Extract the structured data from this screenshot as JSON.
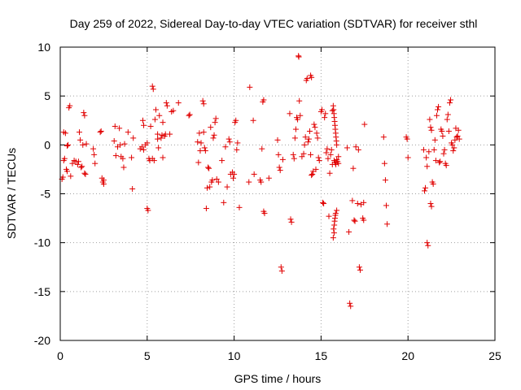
{
  "chart_data": {
    "type": "scatter",
    "title": "Day 259 of 2022, Sidereal Day-to-day VTEC variation (SDTVAR) for receiver sthl",
    "xlabel": "GPS time / hours",
    "ylabel": "SDTVAR / TECUs",
    "xlim": [
      0,
      25
    ],
    "ylim": [
      -20,
      10
    ],
    "xticks": [
      "0",
      "5",
      "10",
      "15",
      "20",
      "25"
    ],
    "yticks": [
      "10",
      "5",
      "0",
      "-5",
      "-10",
      "-15",
      "-20"
    ],
    "grid": true,
    "marker": "plus",
    "color": "#e00000",
    "series": [
      {
        "name": "SDTVAR",
        "points": [
          [
            0.1,
            -3.5
          ],
          [
            0.15,
            -3.3
          ],
          [
            0.2,
            -1.6
          ],
          [
            0.25,
            -1.4
          ],
          [
            0.2,
            1.3
          ],
          [
            0.3,
            1.2
          ],
          [
            0.35,
            -2.5
          ],
          [
            0.4,
            -2.7
          ],
          [
            0.4,
            -0.1
          ],
          [
            0.45,
            0.0
          ],
          [
            0.5,
            3.8
          ],
          [
            0.55,
            4.0
          ],
          [
            0.6,
            -3.2
          ],
          [
            0.7,
            -1.9
          ],
          [
            0.8,
            -1.6
          ],
          [
            0.9,
            -1.7
          ],
          [
            1.0,
            -2.0
          ],
          [
            1.05,
            -1.7
          ],
          [
            1.1,
            1.3
          ],
          [
            1.15,
            0.5
          ],
          [
            1.2,
            -2.3
          ],
          [
            1.25,
            -2.2
          ],
          [
            1.3,
            0.0
          ],
          [
            1.35,
            3.3
          ],
          [
            1.4,
            3.0
          ],
          [
            1.4,
            -2.9
          ],
          [
            1.45,
            -3.0
          ],
          [
            1.5,
            0.1
          ],
          [
            1.9,
            -0.4
          ],
          [
            1.95,
            -1.0
          ],
          [
            2.0,
            -1.9
          ],
          [
            2.3,
            1.3
          ],
          [
            2.35,
            1.4
          ],
          [
            2.4,
            -3.4
          ],
          [
            2.45,
            -3.8
          ],
          [
            2.5,
            -4.0
          ],
          [
            2.5,
            -3.6
          ],
          [
            3.1,
            0.4
          ],
          [
            3.15,
            1.9
          ],
          [
            3.2,
            -1.1
          ],
          [
            3.3,
            -0.2
          ],
          [
            3.4,
            1.7
          ],
          [
            3.45,
            0.0
          ],
          [
            3.5,
            -1.2
          ],
          [
            3.6,
            -1.4
          ],
          [
            3.65,
            -2.3
          ],
          [
            3.7,
            0.1
          ],
          [
            3.9,
            1.3
          ],
          [
            4.1,
            -1.3
          ],
          [
            4.15,
            -4.5
          ],
          [
            4.2,
            0.7
          ],
          [
            4.6,
            -0.4
          ],
          [
            4.7,
            -0.2
          ],
          [
            4.75,
            2.5
          ],
          [
            4.8,
            2.0
          ],
          [
            4.8,
            -0.5
          ],
          [
            4.9,
            0.0
          ],
          [
            5.0,
            0.2
          ],
          [
            5.0,
            -6.5
          ],
          [
            5.05,
            -6.7
          ],
          [
            5.1,
            -1.4
          ],
          [
            5.15,
            -1.6
          ],
          [
            5.2,
            1.9
          ],
          [
            5.3,
            -1.4
          ],
          [
            5.3,
            6.0
          ],
          [
            5.35,
            5.7
          ],
          [
            5.4,
            -1.6
          ],
          [
            5.45,
            2.6
          ],
          [
            5.5,
            3.6
          ],
          [
            5.6,
            0.6
          ],
          [
            5.6,
            1.1
          ],
          [
            5.65,
            -0.3
          ],
          [
            5.7,
            3.0
          ],
          [
            5.8,
            0.7
          ],
          [
            5.85,
            1.0
          ],
          [
            5.9,
            -1.3
          ],
          [
            5.9,
            2.3
          ],
          [
            6.0,
            0.9
          ],
          [
            6.05,
            1.1
          ],
          [
            6.1,
            4.3
          ],
          [
            6.15,
            4.0
          ],
          [
            6.3,
            1.1
          ],
          [
            6.4,
            3.4
          ],
          [
            6.5,
            3.5
          ],
          [
            6.8,
            4.3
          ],
          [
            7.4,
            3.0
          ],
          [
            7.45,
            3.1
          ],
          [
            7.9,
            0.3
          ],
          [
            7.95,
            -1.8
          ],
          [
            8.0,
            1.2
          ],
          [
            8.05,
            -0.6
          ],
          [
            8.1,
            0.2
          ],
          [
            8.2,
            4.5
          ],
          [
            8.25,
            4.2
          ],
          [
            8.25,
            1.3
          ],
          [
            8.3,
            -0.3
          ],
          [
            8.35,
            -0.6
          ],
          [
            8.4,
            -6.5
          ],
          [
            8.45,
            -4.4
          ],
          [
            8.5,
            -2.3
          ],
          [
            8.55,
            -2.4
          ],
          [
            8.6,
            -4.3
          ],
          [
            8.65,
            1.8
          ],
          [
            8.7,
            -3.8
          ],
          [
            8.75,
            -3.6
          ],
          [
            8.8,
            0.7
          ],
          [
            8.85,
            1.0
          ],
          [
            8.9,
            2.3
          ],
          [
            8.95,
            2.7
          ],
          [
            9.0,
            -3.5
          ],
          [
            9.1,
            -3.8
          ],
          [
            9.3,
            -1.6
          ],
          [
            9.4,
            -5.9
          ],
          [
            9.5,
            -0.2
          ],
          [
            9.6,
            -4.3
          ],
          [
            9.7,
            0.6
          ],
          [
            9.75,
            0.3
          ],
          [
            9.8,
            -3.0
          ],
          [
            9.9,
            -2.8
          ],
          [
            9.95,
            -3.4
          ],
          [
            10.0,
            -3.0
          ],
          [
            10.05,
            2.3
          ],
          [
            10.1,
            2.5
          ],
          [
            10.15,
            -0.5
          ],
          [
            10.2,
            0.2
          ],
          [
            10.3,
            -6.4
          ],
          [
            10.9,
            5.9
          ],
          [
            10.85,
            -3.8
          ],
          [
            11.1,
            2.5
          ],
          [
            11.15,
            -3.0
          ],
          [
            11.5,
            -3.6
          ],
          [
            11.55,
            -3.8
          ],
          [
            11.6,
            -0.4
          ],
          [
            11.65,
            4.4
          ],
          [
            11.7,
            4.6
          ],
          [
            11.7,
            -6.8
          ],
          [
            11.75,
            -7.0
          ],
          [
            12.0,
            -3.4
          ],
          [
            12.5,
            0.5
          ],
          [
            12.55,
            -1.0
          ],
          [
            12.6,
            -2.3
          ],
          [
            12.65,
            -2.6
          ],
          [
            12.7,
            -12.5
          ],
          [
            12.75,
            -12.9
          ],
          [
            12.8,
            -1.5
          ],
          [
            13.2,
            3.2
          ],
          [
            13.25,
            -7.6
          ],
          [
            13.3,
            -7.9
          ],
          [
            13.4,
            -1.0
          ],
          [
            13.45,
            -1.4
          ],
          [
            13.5,
            0.7
          ],
          [
            13.55,
            1.6
          ],
          [
            13.6,
            2.8
          ],
          [
            13.65,
            2.6
          ],
          [
            13.7,
            9.1
          ],
          [
            13.72,
            9.0
          ],
          [
            13.75,
            4.5
          ],
          [
            13.8,
            3.0
          ],
          [
            13.9,
            -1.2
          ],
          [
            14.0,
            -0.9
          ],
          [
            14.05,
            0.0
          ],
          [
            14.1,
            0.8
          ],
          [
            14.15,
            6.6
          ],
          [
            14.2,
            6.8
          ],
          [
            14.25,
            0.3
          ],
          [
            14.3,
            0.6
          ],
          [
            14.35,
            1.4
          ],
          [
            14.4,
            7.1
          ],
          [
            14.45,
            6.9
          ],
          [
            14.4,
            -1.0
          ],
          [
            14.45,
            -3.1
          ],
          [
            14.5,
            -3.0
          ],
          [
            14.55,
            -2.7
          ],
          [
            14.6,
            2.1
          ],
          [
            14.65,
            1.8
          ],
          [
            14.7,
            -2.5
          ],
          [
            14.75,
            1.2
          ],
          [
            14.8,
            0.7
          ],
          [
            14.85,
            -1.3
          ],
          [
            14.9,
            -1.6
          ],
          [
            15.0,
            3.4
          ],
          [
            15.05,
            3.6
          ],
          [
            15.1,
            -5.9
          ],
          [
            15.15,
            -6.0
          ],
          [
            15.2,
            2.8
          ],
          [
            15.25,
            3.2
          ],
          [
            15.3,
            -0.8
          ],
          [
            15.35,
            -0.4
          ],
          [
            15.4,
            -1.4
          ],
          [
            15.45,
            -7.3
          ],
          [
            15.5,
            -2.9
          ],
          [
            15.55,
            -1.0
          ],
          [
            15.6,
            -0.5
          ],
          [
            15.65,
            -2.0
          ],
          [
            15.65,
            3.5
          ],
          [
            15.7,
            -9.5
          ],
          [
            15.75,
            -9.0
          ],
          [
            15.72,
            -8.6
          ],
          [
            15.76,
            -8.2
          ],
          [
            15.78,
            -7.8
          ],
          [
            15.8,
            -7.5
          ],
          [
            15.82,
            -7.2
          ],
          [
            15.84,
            -7.0
          ],
          [
            15.7,
            4.0
          ],
          [
            15.72,
            3.6
          ],
          [
            15.74,
            3.2
          ],
          [
            15.76,
            2.8
          ],
          [
            15.78,
            2.4
          ],
          [
            15.8,
            2.0
          ],
          [
            15.82,
            1.6
          ],
          [
            15.84,
            1.2
          ],
          [
            15.86,
            0.8
          ],
          [
            15.88,
            0.4
          ],
          [
            15.9,
            0.0
          ],
          [
            15.75,
            -1.6
          ],
          [
            15.8,
            -1.8
          ],
          [
            15.85,
            -2.0
          ],
          [
            15.9,
            -1.5
          ],
          [
            15.95,
            -1.7
          ],
          [
            16.0,
            -1.9
          ],
          [
            16.0,
            -1.2
          ],
          [
            15.9,
            -6.7
          ],
          [
            16.5,
            -0.3
          ],
          [
            16.6,
            -8.9
          ],
          [
            16.65,
            -16.2
          ],
          [
            16.7,
            -16.5
          ],
          [
            16.8,
            -5.7
          ],
          [
            16.85,
            -2.4
          ],
          [
            16.9,
            -7.7
          ],
          [
            16.95,
            -7.8
          ],
          [
            17.0,
            -0.2
          ],
          [
            17.1,
            -6.0
          ],
          [
            17.15,
            -0.5
          ],
          [
            17.2,
            -12.5
          ],
          [
            17.25,
            -12.8
          ],
          [
            17.3,
            -6.1
          ],
          [
            17.4,
            -7.5
          ],
          [
            17.45,
            -7.7
          ],
          [
            17.45,
            -5.9
          ],
          [
            17.5,
            2.1
          ],
          [
            18.6,
            0.8
          ],
          [
            18.65,
            -1.9
          ],
          [
            18.7,
            -3.6
          ],
          [
            18.75,
            -6.2
          ],
          [
            18.8,
            -8.1
          ],
          [
            19.9,
            0.8
          ],
          [
            19.95,
            0.6
          ],
          [
            20.0,
            -1.3
          ],
          [
            20.9,
            -0.5
          ],
          [
            20.95,
            -4.7
          ],
          [
            21.0,
            -4.4
          ],
          [
            21.05,
            -1.3
          ],
          [
            21.1,
            -10.0
          ],
          [
            21.15,
            -10.3
          ],
          [
            21.1,
            -2.2
          ],
          [
            21.2,
            -0.7
          ],
          [
            21.25,
            2.6
          ],
          [
            21.3,
            1.8
          ],
          [
            21.35,
            1.5
          ],
          [
            21.3,
            -6.0
          ],
          [
            21.35,
            -6.3
          ],
          [
            21.4,
            -3.8
          ],
          [
            21.45,
            -4.0
          ],
          [
            21.5,
            -0.5
          ],
          [
            21.55,
            0.5
          ],
          [
            21.6,
            -1.6
          ],
          [
            21.65,
            3.0
          ],
          [
            21.7,
            3.6
          ],
          [
            21.75,
            3.9
          ],
          [
            21.8,
            -1.8
          ],
          [
            21.85,
            -1.7
          ],
          [
            21.9,
            1.6
          ],
          [
            21.95,
            1.4
          ],
          [
            22.0,
            0.9
          ],
          [
            22.05,
            -0.9
          ],
          [
            22.1,
            -0.5
          ],
          [
            22.15,
            -1.9
          ],
          [
            22.2,
            -2.1
          ],
          [
            22.25,
            2.6
          ],
          [
            22.3,
            3.1
          ],
          [
            22.35,
            1.4
          ],
          [
            22.4,
            4.3
          ],
          [
            22.45,
            4.6
          ],
          [
            22.5,
            0.2
          ],
          [
            22.55,
            0.0
          ],
          [
            22.6,
            -0.6
          ],
          [
            22.65,
            -0.3
          ],
          [
            22.7,
            0.5
          ],
          [
            22.75,
            1.7
          ],
          [
            22.8,
            0.8
          ],
          [
            22.85,
            0.9
          ],
          [
            22.9,
            1.5
          ],
          [
            22.95,
            0.6
          ]
        ]
      }
    ]
  }
}
